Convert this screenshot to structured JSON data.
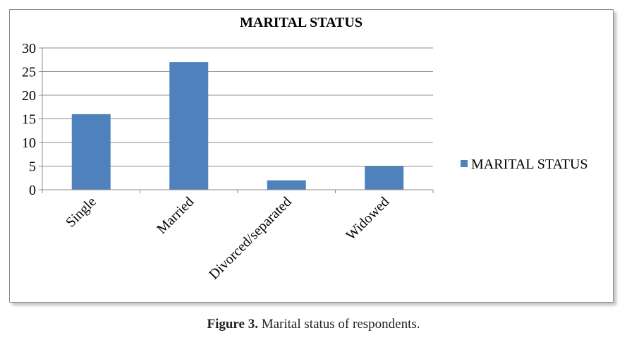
{
  "chart_data": {
    "type": "bar",
    "title": "MARITAL STATUS",
    "categories": [
      "Single",
      "Married",
      "Divorced/separated",
      "Widowed"
    ],
    "series": [
      {
        "name": "MARITAL STATUS",
        "values": [
          16,
          27,
          2,
          5
        ]
      }
    ],
    "ylim": [
      0,
      30
    ],
    "yticks": [
      "0",
      "5",
      "10",
      "15",
      "20",
      "25",
      "30"
    ],
    "grid": true,
    "legend_position": "right",
    "bar_color": "#4f81bd"
  },
  "caption": {
    "label": "Figure 3.",
    "text": " Marital status of respondents."
  }
}
